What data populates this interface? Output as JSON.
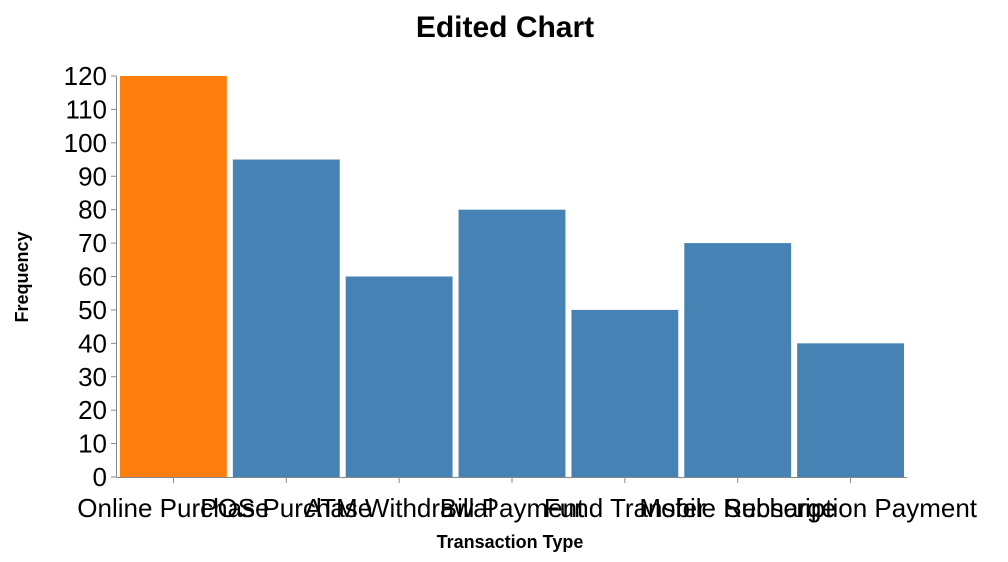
{
  "chart_data": {
    "type": "bar",
    "title": "Edited Chart",
    "xlabel": "Transaction Type",
    "ylabel": "Frequency",
    "categories": [
      "Online Purchase",
      "POS Purchase",
      "ATM Withdrawal",
      "Bill Payment",
      "Fund Transfer",
      "Mobile Recharge",
      "Subscription Payment"
    ],
    "values": [
      120,
      95,
      60,
      80,
      50,
      70,
      40
    ],
    "ylim": [
      0,
      120
    ],
    "yticks": [
      0,
      10,
      20,
      30,
      40,
      50,
      60,
      70,
      80,
      90,
      100,
      110,
      120
    ],
    "grid": false,
    "legend": "none",
    "highlight_index": 0,
    "colors": {
      "bar": "#4682b4",
      "highlight": "#ff7f0e",
      "axis": "#888888",
      "text": "#000000"
    }
  }
}
